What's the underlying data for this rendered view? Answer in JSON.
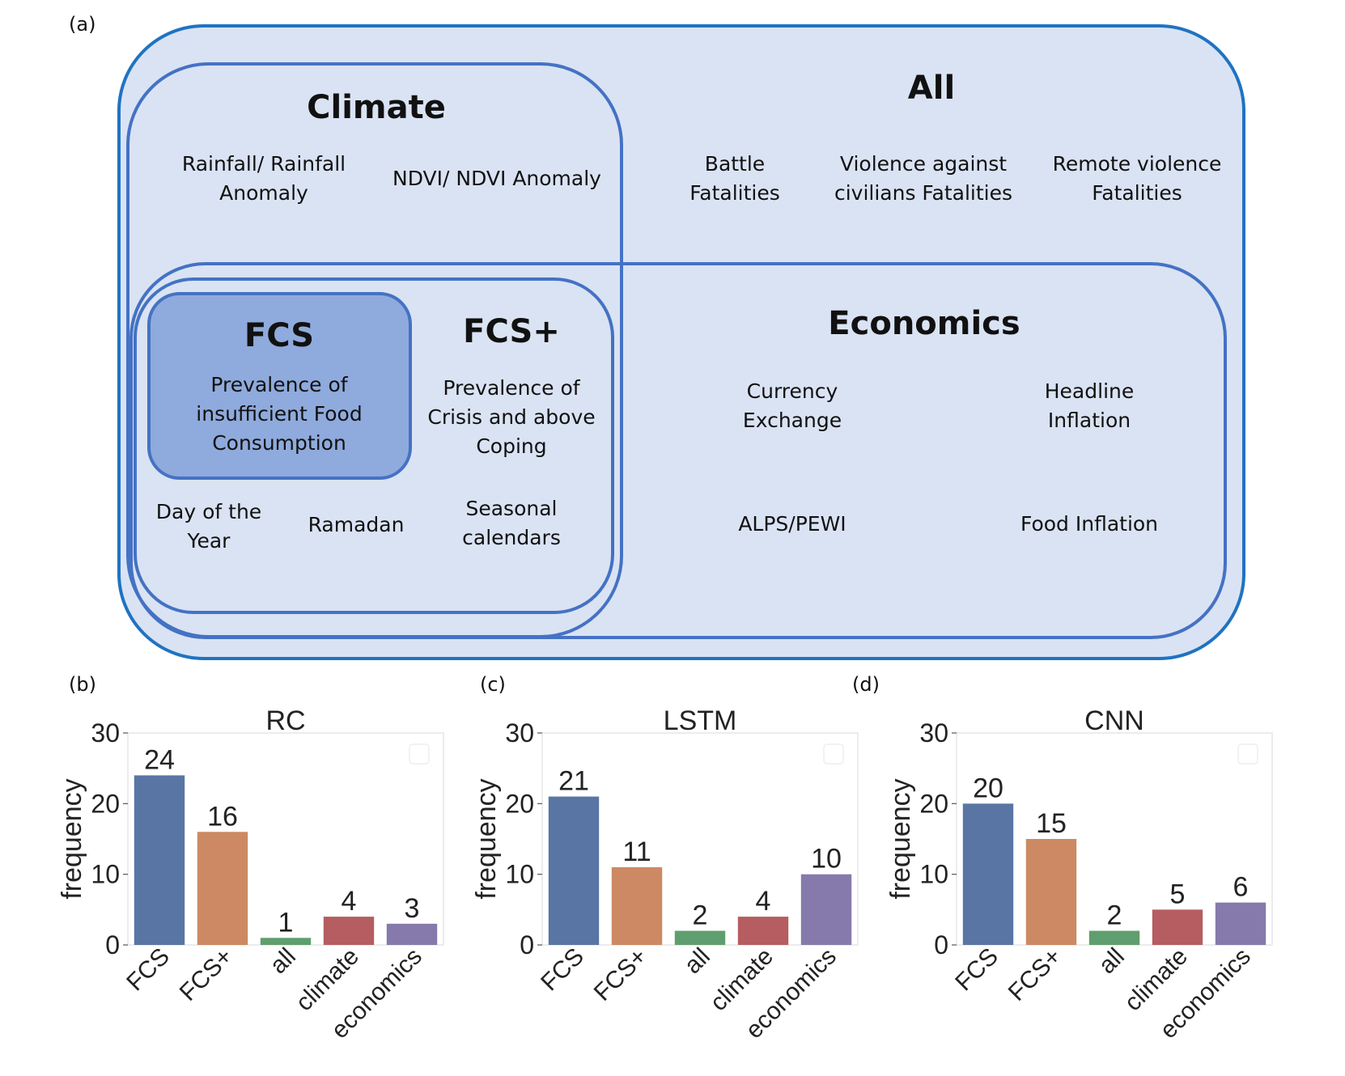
{
  "panels": {
    "a": "(a)",
    "b": "(b)",
    "c": "(c)",
    "d": "(d)"
  },
  "diagram": {
    "all": {
      "title": "All",
      "features": [
        [
          "Battle",
          "Fatalities"
        ],
        [
          "Violence against",
          "civilians Fatalities"
        ],
        [
          "Remote violence",
          "Fatalities"
        ]
      ]
    },
    "climate": {
      "title": "Climate",
      "features": [
        [
          "Rainfall/ Rainfall",
          "Anomaly"
        ],
        [
          "NDVI/ NDVI Anomaly"
        ]
      ]
    },
    "fcs": {
      "title": "FCS",
      "features": [
        [
          "Prevalence of",
          "insufficient Food",
          "Consumption"
        ]
      ]
    },
    "fcs_plus": {
      "title": "FCS+",
      "features": [
        [
          "Prevalence of",
          "Crisis and above",
          "Coping"
        ],
        [
          "Day of the",
          "Year"
        ],
        [
          "Ramadan"
        ],
        [
          "Seasonal",
          "calendars"
        ]
      ]
    },
    "economics": {
      "title": "Economics",
      "features": [
        [
          "Currency",
          "Exchange"
        ],
        [
          "Headline",
          "Inflation"
        ],
        [
          "ALPS/PEWI"
        ],
        [
          "Food Inflation"
        ]
      ]
    },
    "colors": {
      "outer_stroke": "#1f73c2",
      "group_stroke": "#4472c4",
      "fill": "#dae3f3",
      "fcs_fill": "#8faadc"
    }
  },
  "chart_data": [
    {
      "type": "bar",
      "title": "RC",
      "ylabel": "frequency",
      "xlabel": "",
      "categories": [
        "FCS",
        "FCS+",
        "all",
        "climate",
        "economics"
      ],
      "values": [
        24,
        16,
        1,
        4,
        3
      ],
      "ylim": [
        0,
        30
      ],
      "yticks": [
        0,
        10,
        20,
        30
      ],
      "colors": [
        "#5975a4",
        "#cc8963",
        "#5f9e6e",
        "#b55d60",
        "#857aab"
      ]
    },
    {
      "type": "bar",
      "title": "LSTM",
      "ylabel": "frequency",
      "xlabel": "",
      "categories": [
        "FCS",
        "FCS+",
        "all",
        "climate",
        "economics"
      ],
      "values": [
        21,
        11,
        2,
        4,
        10
      ],
      "ylim": [
        0,
        30
      ],
      "yticks": [
        0,
        10,
        20,
        30
      ],
      "colors": [
        "#5975a4",
        "#cc8963",
        "#5f9e6e",
        "#b55d60",
        "#857aab"
      ]
    },
    {
      "type": "bar",
      "title": "CNN",
      "ylabel": "frequency",
      "xlabel": "",
      "categories": [
        "FCS",
        "FCS+",
        "all",
        "climate",
        "economics"
      ],
      "values": [
        20,
        15,
        2,
        5,
        6
      ],
      "ylim": [
        0,
        30
      ],
      "yticks": [
        0,
        10,
        20,
        30
      ],
      "colors": [
        "#5975a4",
        "#cc8963",
        "#5f9e6e",
        "#b55d60",
        "#857aab"
      ]
    }
  ]
}
